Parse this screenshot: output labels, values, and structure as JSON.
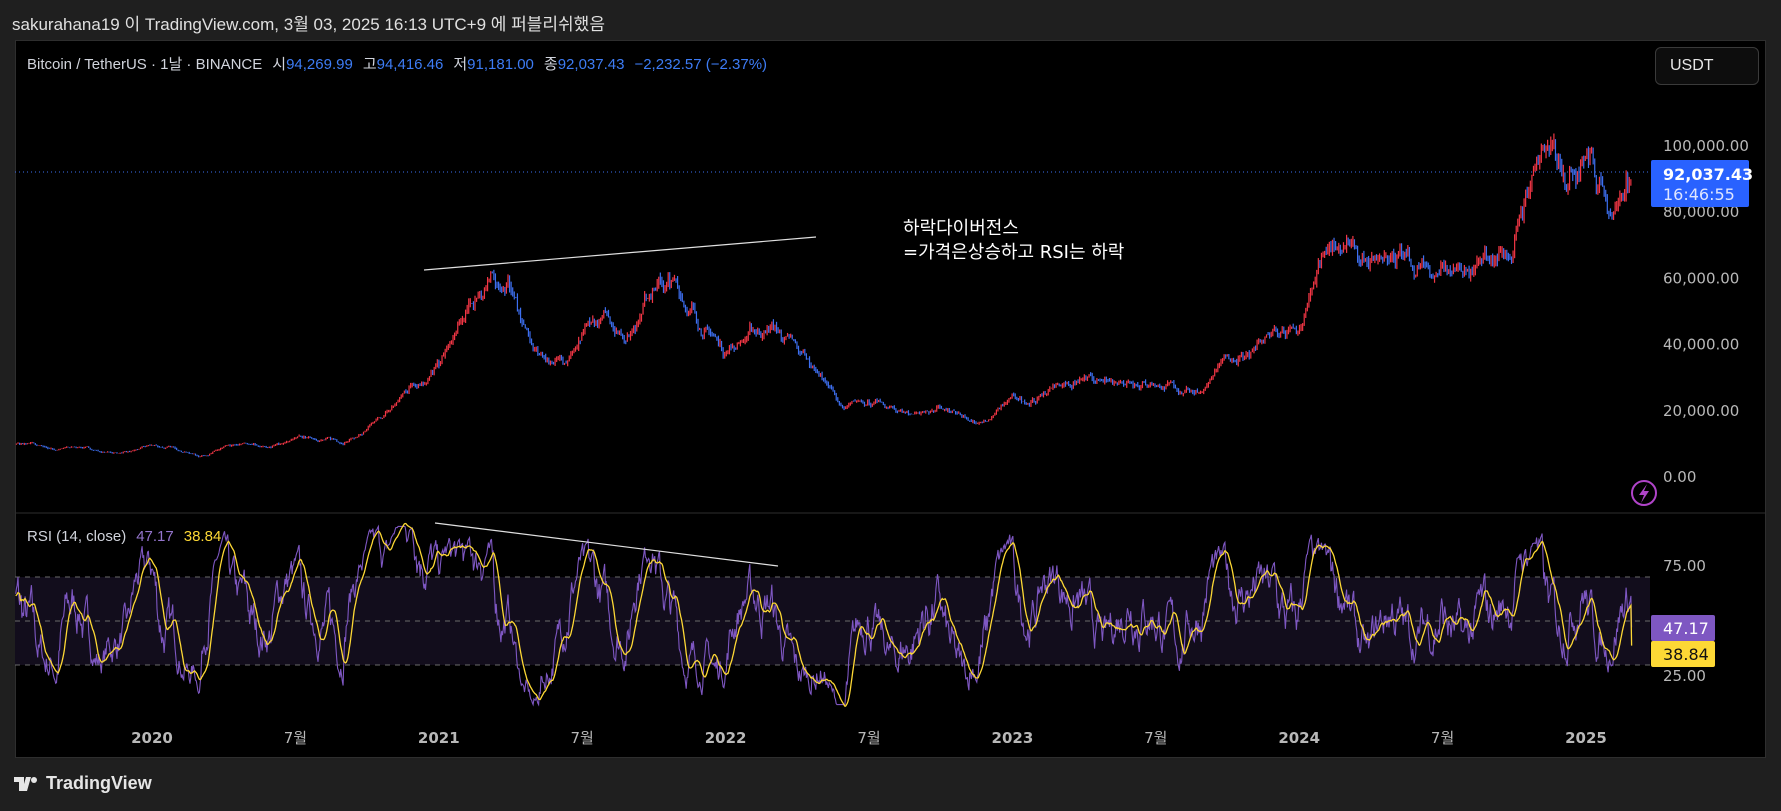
{
  "header": {
    "published": "sakurahana19 이 TradingView.com, 3월 03, 2025 16:13 UTC+9 에 퍼블리쉬했음"
  },
  "legend": {
    "symbol": "Bitcoin / TetherUS · 1날 · BINANCE",
    "open_label": "시",
    "open": "94,269.99",
    "high_label": "고",
    "high": "94,416.46",
    "low_label": "저",
    "low": "91,181.00",
    "close_label": "종",
    "close": "92,037.43",
    "change": "−2,232.57 (−2.37%)"
  },
  "currency_button": "USDT",
  "price_label": {
    "value": "92,037.43",
    "countdown": "16:46:55"
  },
  "annotation": {
    "line1": "하락다이버전스",
    "line2": "=가격은상승하고 RSI는 하락"
  },
  "rsi_legend": {
    "name": "RSI (14, close)",
    "rsi": "47.17",
    "ma": "38.84"
  },
  "rsi_labels": {
    "rsi": "47.17",
    "ma": "38.84"
  },
  "footer": {
    "brand": "TradingView"
  },
  "colors": {
    "up": "#f23645",
    "down": "#3d6ff0",
    "rsi": "#7e57c2",
    "rsi_ma": "#fdd835",
    "accent": "#2962ff"
  },
  "chart_data": [
    {
      "type": "line",
      "title": "Bitcoin / TetherUS · 1D · BINANCE (candles)",
      "ylim": [
        -10000,
        115000
      ],
      "yticks": [
        "100,000.00",
        "80,000.00",
        "60,000.00",
        "40,000.00",
        "20,000.00",
        "0.00"
      ],
      "ytick_values": [
        100000,
        80000,
        60000,
        40000,
        20000,
        0
      ],
      "xticks": [
        "2020",
        "7월",
        "2021",
        "7월",
        "2022",
        "7월",
        "2023",
        "7월",
        "2024",
        "7월",
        "2025"
      ],
      "xtick_values": [
        2020.0,
        2020.5,
        2021.0,
        2021.5,
        2022.0,
        2022.5,
        2023.0,
        2023.5,
        2024.0,
        2024.5,
        2025.0
      ],
      "xlim": [
        2019.52,
        2025.2
      ],
      "monthly_close": {
        "start": "2019-07",
        "values": [
          10000,
          9600,
          8300,
          9150,
          7550,
          7200,
          9350,
          8600,
          6400,
          8600,
          9450,
          9140,
          11350,
          11650,
          10780,
          13800,
          19700,
          29000,
          33100,
          45200,
          58800,
          57700,
          37300,
          35000,
          41500,
          47100,
          43800,
          61300,
          57000,
          46200,
          38500,
          43200,
          45500,
          37700,
          31800,
          19900,
          23300,
          20050,
          19400,
          20500,
          17150,
          16550,
          23100,
          23150,
          28450,
          29250,
          27200,
          30450,
          29250,
          25950,
          26950,
          34650,
          37700,
          42300,
          42600,
          61200,
          71300,
          60600,
          67500,
          62700,
          64600,
          58900,
          63300,
          70200,
          96400,
          93400,
          102400,
          84300,
          92037
        ]
      },
      "last_price": 92037.43,
      "trendline": {
        "from": [
          2021.0,
          62000
        ],
        "to": [
          2022.35,
          72000
        ]
      }
    },
    {
      "type": "line",
      "title": "RSI (14, close)",
      "ylim": [
        10,
        95
      ],
      "yticks": [
        "75.00",
        "25.00"
      ],
      "ytick_values": [
        75,
        25
      ],
      "bands": [
        70,
        50,
        30
      ],
      "series": [
        {
          "name": "RSI",
          "last": 47.17
        },
        {
          "name": "RSI-based MA",
          "last": 38.84
        }
      ],
      "trendline": {
        "from": [
          2020.98,
          92
        ],
        "to": [
          2022.2,
          72
        ]
      }
    }
  ]
}
